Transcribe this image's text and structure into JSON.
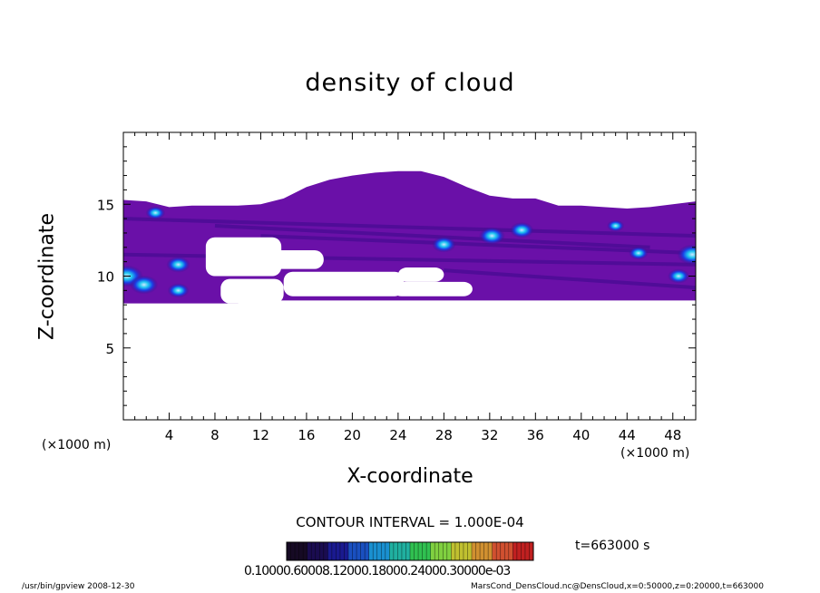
{
  "chart_data": {
    "type": "heatmap",
    "title": "density of cloud",
    "xlabel": "X-coordinate",
    "ylabel": "Z-coordinate",
    "x_unit_label": "(×1000 m)",
    "xlim": [
      0,
      50
    ],
    "ylim": [
      0,
      20
    ],
    "xticks": [
      "4",
      "8",
      "12",
      "16",
      "20",
      "24",
      "28",
      "32",
      "36",
      "40",
      "44",
      "48"
    ],
    "yticks": [
      "5",
      "10",
      "15"
    ],
    "contour_interval": "CONTOUR INTERVAL = 1.000E-04",
    "time": "t=663000 s",
    "colorbar_ticks": "0.10000.60008.12000.18000.24000.30000e-03",
    "cloud_layers": [
      {
        "xs": [
          0,
          2,
          4,
          6,
          8,
          10,
          12,
          14,
          16,
          18,
          20,
          22,
          24,
          26,
          28,
          30,
          32,
          34,
          36,
          38,
          40,
          42,
          44,
          46,
          48,
          50
        ],
        "top": [
          15.3,
          15.2,
          14.8,
          14.9,
          14.9,
          14.9,
          15.0,
          15.4,
          16.2,
          16.7,
          17.0,
          17.2,
          17.3,
          17.3,
          16.9,
          16.2,
          15.6,
          15.4,
          15.4,
          14.9,
          14.9,
          14.8,
          14.7,
          14.8,
          15.0,
          15.2
        ],
        "bottom": [
          8.1,
          8.1,
          8.1,
          8.1,
          8.1,
          8.1,
          8.3,
          8.3,
          8.3,
          8.3,
          8.3,
          8.3,
          8.3,
          8.3,
          8.3,
          8.3,
          8.3,
          8.3,
          8.3,
          8.3,
          8.3,
          8.3,
          8.3,
          8.3,
          8.3,
          8.3
        ]
      }
    ],
    "gaps": [
      {
        "x": [
          7.2,
          13.8
        ],
        "z": [
          10.0,
          12.7
        ]
      },
      {
        "x": [
          12.5,
          17.5
        ],
        "z": [
          10.5,
          11.8
        ]
      },
      {
        "x": [
          14.0,
          24.5
        ],
        "z": [
          8.6,
          10.3
        ]
      },
      {
        "x": [
          23.5,
          30.5
        ],
        "z": [
          8.6,
          9.6
        ]
      },
      {
        "x": [
          8.5,
          14.0
        ],
        "z": [
          8.1,
          9.8
        ]
      },
      {
        "x": [
          24.0,
          28.0
        ],
        "z": [
          9.6,
          10.6
        ]
      }
    ],
    "maxima": [
      {
        "x": 0.3,
        "z": 10.0,
        "level": 1.0
      },
      {
        "x": 1.8,
        "z": 9.4,
        "level": 0.8
      },
      {
        "x": 4.8,
        "z": 10.8,
        "level": 0.6
      },
      {
        "x": 4.8,
        "z": 9.0,
        "level": 0.5
      },
      {
        "x": 2.8,
        "z": 14.4,
        "level": 0.4
      },
      {
        "x": 28.0,
        "z": 12.2,
        "level": 0.6
      },
      {
        "x": 32.2,
        "z": 12.8,
        "level": 0.7
      },
      {
        "x": 34.8,
        "z": 13.2,
        "level": 0.6
      },
      {
        "x": 49.7,
        "z": 11.5,
        "level": 0.9
      },
      {
        "x": 48.5,
        "z": 10.0,
        "level": 0.5
      },
      {
        "x": 45.0,
        "z": 11.6,
        "level": 0.4
      },
      {
        "x": 43.0,
        "z": 13.5,
        "level": 0.3
      }
    ],
    "colors": {
      "base": "#6a10a8",
      "dark": "#3a0a8a",
      "blue": "#1a40e8",
      "cyan": "#20c8f0",
      "light": "#cde8ff"
    },
    "colorbar_colors": [
      "#160a24",
      "#1a0c50",
      "#1a1a90",
      "#1a50c0",
      "#1a90d0",
      "#20b0a0",
      "#30c050",
      "#80d040",
      "#c0c030",
      "#d09030",
      "#d05030",
      "#c02020"
    ]
  },
  "footer": {
    "left": "/usr/bin/gpview   2008-12-30",
    "right": "MarsCond_DensCloud.nc@DensCloud,x=0:50000,z=0:20000,t=663000"
  }
}
